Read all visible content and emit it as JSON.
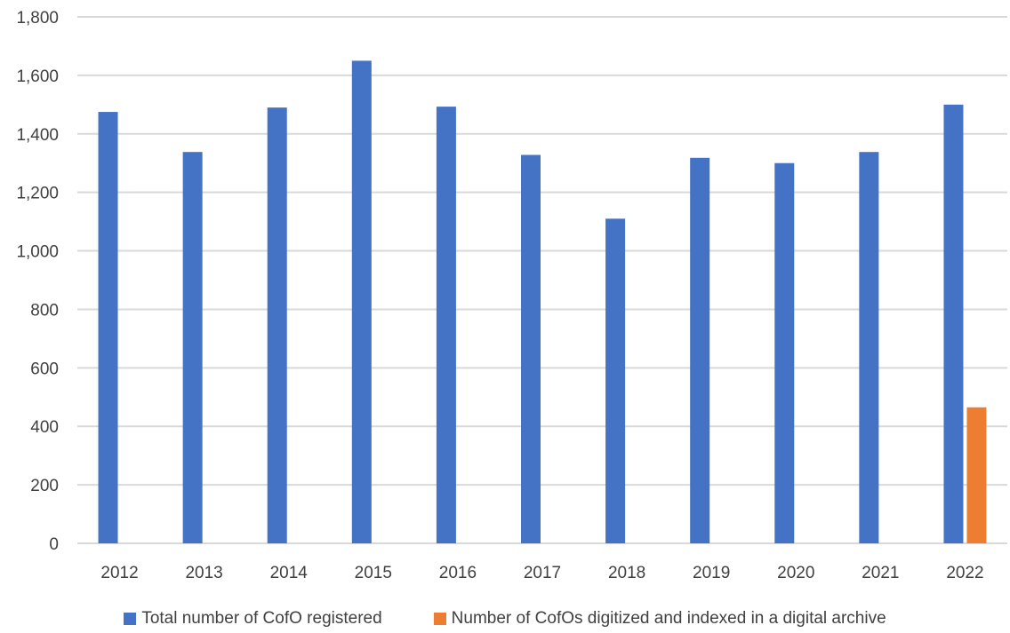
{
  "chart_data": {
    "type": "bar",
    "title": "",
    "xlabel": "",
    "ylabel": "",
    "categories": [
      "2012",
      "2013",
      "2014",
      "2015",
      "2016",
      "2017",
      "2018",
      "2019",
      "2020",
      "2021",
      "2022"
    ],
    "series": [
      {
        "name": "Total number of CofO registered",
        "color": "#4472C4",
        "values": [
          1475,
          1338,
          1490,
          1650,
          1493,
          1328,
          1110,
          1318,
          1300,
          1338,
          1500
        ]
      },
      {
        "name": "Number of CofOs digitized and indexed in a digital archive",
        "color": "#ED7D31",
        "values": [
          0,
          0,
          0,
          0,
          0,
          0,
          0,
          0,
          0,
          0,
          465
        ]
      }
    ],
    "ylim": [
      0,
      1800
    ],
    "yticks": [
      0,
      200,
      400,
      600,
      800,
      1000,
      1200,
      1400,
      1600,
      1800
    ],
    "ytick_labels": [
      "0",
      "200",
      "400",
      "600",
      "800",
      "1,000",
      "1,200",
      "1,400",
      "1,600",
      "1,800"
    ],
    "grid": true,
    "legend_position": "bottom"
  }
}
